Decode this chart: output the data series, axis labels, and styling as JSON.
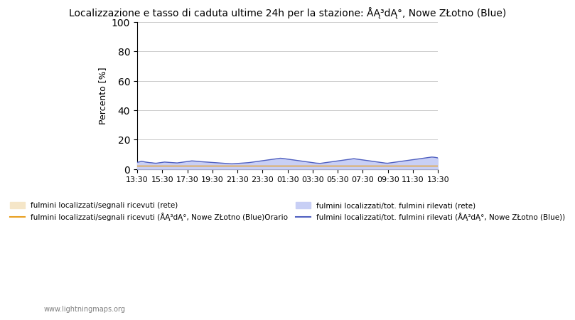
{
  "title": "Localizzazione e tasso di caduta ultime 24h per la stazione: ÅĄ³dĄ°, Nowe ZŁotno (Blue)",
  "ylabel": "Percento [%]",
  "xlim_labels": [
    "13:30",
    "15:30",
    "17:30",
    "19:30",
    "21:30",
    "23:30",
    "01:30",
    "03:30",
    "05:30",
    "07:30",
    "09:30",
    "11:30",
    "13:30"
  ],
  "ylim": [
    0,
    100
  ],
  "yticks": [
    0,
    20,
    40,
    60,
    80,
    100
  ],
  "fill_network_color": "#f5e6c8",
  "fill_station_color": "#c8cff5",
  "line_network_color": "#e8a020",
  "line_station_color": "#5060c0",
  "legend_fill_network": "fulmini localizzati/segnali ricevuti (rete)",
  "legend_fill_station": "fulmini localizzati/tot. fulmini rilevati (rete)",
  "legend_line_network": "fulmini localizzati/segnali ricevuti (ÅĄ³dĄ°, Nowe ZŁotno (Blue)Orario",
  "legend_line_station": "fulmini localizzati/tot. fulmini rilevati (ÅĄ³dĄ°, Nowe ZŁotno (Blue))",
  "watermark": "www.lightningmaps.org",
  "n_points": 144,
  "network_fill_values": [
    2.0,
    2.0,
    2.0,
    2.0,
    2.0,
    2.0,
    2.0,
    2.0,
    2.0,
    2.0,
    2.0,
    2.0,
    2.0,
    2.0,
    2.0,
    2.0,
    2.0,
    2.0,
    2.0,
    2.0,
    2.0,
    2.0,
    2.0,
    2.0,
    2.0,
    2.0,
    2.0,
    2.0,
    2.0,
    2.0,
    2.0,
    2.0,
    2.0,
    2.0,
    2.0,
    2.0,
    2.0,
    2.0,
    2.0,
    2.0,
    2.0,
    2.0,
    2.0,
    2.0,
    2.0,
    2.0,
    2.0,
    2.0,
    2.0,
    2.0,
    2.0,
    2.0,
    2.0,
    2.0,
    2.0,
    2.0,
    2.0,
    2.0,
    2.0,
    2.0,
    2.0,
    2.0,
    2.0,
    2.0,
    2.0,
    2.0,
    2.0,
    2.0,
    2.0,
    2.0,
    2.0,
    2.0,
    2.0,
    2.0,
    2.0,
    2.0,
    2.0,
    2.0,
    2.0,
    2.0,
    2.0,
    2.0,
    2.0,
    2.0,
    2.0,
    2.0,
    2.0,
    2.0,
    2.0,
    2.0,
    2.0,
    2.0,
    2.0,
    2.0,
    2.0,
    2.0,
    2.0,
    2.0,
    2.0,
    2.0,
    2.0,
    2.0,
    2.0,
    2.0,
    2.0,
    2.0,
    2.0,
    2.0,
    2.0,
    2.0,
    2.0,
    2.0,
    2.0,
    2.0,
    2.0,
    2.0,
    2.0,
    2.0,
    2.0,
    2.0,
    2.0,
    2.0,
    2.0,
    2.0,
    2.0,
    2.0,
    2.0,
    2.0,
    2.0,
    2.0,
    2.0,
    2.0,
    2.0,
    2.0,
    2.0,
    2.0,
    2.0,
    2.0,
    2.0,
    2.0,
    2.0,
    2.0,
    2.0,
    2.0
  ],
  "station_fill_values": [
    4.5,
    4.8,
    5.2,
    5.0,
    4.7,
    4.5,
    4.3,
    4.2,
    4.0,
    3.9,
    4.1,
    4.3,
    4.5,
    4.7,
    4.6,
    4.5,
    4.4,
    4.3,
    4.2,
    4.1,
    4.3,
    4.5,
    4.7,
    4.9,
    5.1,
    5.3,
    5.5,
    5.4,
    5.3,
    5.2,
    5.0,
    4.9,
    4.8,
    4.7,
    4.6,
    4.5,
    4.4,
    4.3,
    4.2,
    4.1,
    4.0,
    3.9,
    3.8,
    3.7,
    3.6,
    3.5,
    3.6,
    3.7,
    3.8,
    3.9,
    4.0,
    4.1,
    4.2,
    4.3,
    4.5,
    4.7,
    4.9,
    5.1,
    5.3,
    5.5,
    5.7,
    5.9,
    6.1,
    6.3,
    6.5,
    6.7,
    6.9,
    7.1,
    7.3,
    7.2,
    7.0,
    6.8,
    6.6,
    6.4,
    6.2,
    6.0,
    5.8,
    5.6,
    5.4,
    5.2,
    5.0,
    4.8,
    4.6,
    4.4,
    4.2,
    4.0,
    3.9,
    3.8,
    4.0,
    4.2,
    4.4,
    4.6,
    4.8,
    5.0,
    5.2,
    5.4,
    5.6,
    5.8,
    6.0,
    6.2,
    6.4,
    6.6,
    6.8,
    7.0,
    6.8,
    6.6,
    6.4,
    6.2,
    6.0,
    5.8,
    5.6,
    5.4,
    5.2,
    5.0,
    4.8,
    4.6,
    4.4,
    4.2,
    4.0,
    3.9,
    4.1,
    4.3,
    4.5,
    4.7,
    4.9,
    5.1,
    5.3,
    5.5,
    5.7,
    5.9,
    6.1,
    6.3,
    6.5,
    6.7,
    6.9,
    7.1,
    7.3,
    7.5,
    7.7,
    7.9,
    8.1,
    8.0,
    7.8,
    7.5
  ]
}
